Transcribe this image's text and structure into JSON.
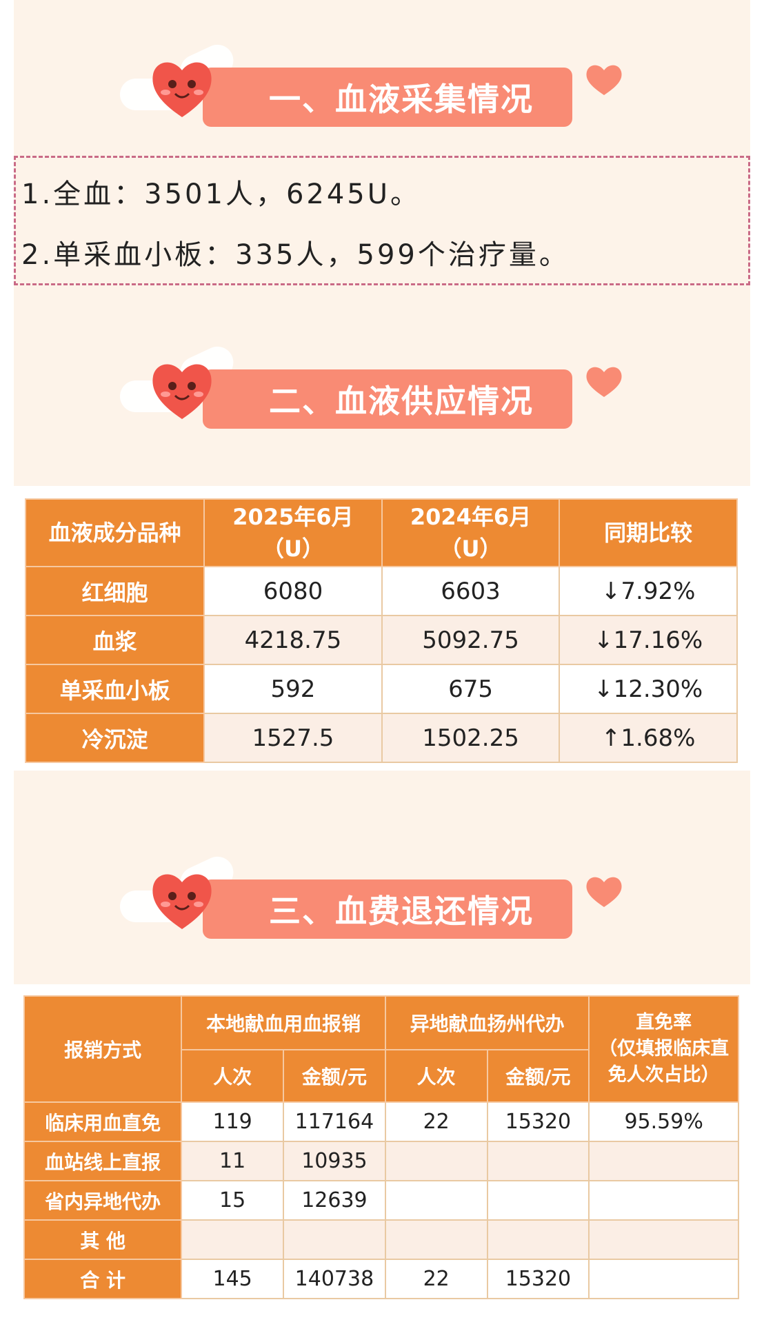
{
  "sections": {
    "collection": {
      "title": "一、血液采集情况",
      "lines": [
        "1.全血：3501人，6245U。",
        "2.单采血小板：335人，599个治疗量。"
      ]
    },
    "supply": {
      "title": "二、血液供应情况",
      "headers": [
        "血液成分品种",
        "2025年6月",
        "（U）",
        "2024年6月",
        "（U）",
        "同期比较"
      ],
      "rows": [
        {
          "name": "红细胞",
          "y2025": "6080",
          "y2024": "6603",
          "change": "↓7.92%"
        },
        {
          "name": "血浆",
          "y2025": "4218.75",
          "y2024": "5092.75",
          "change": "↓17.16%"
        },
        {
          "name": "单采血小板",
          "y2025": "592",
          "y2024": "675",
          "change": "↓12.30%"
        },
        {
          "name": "冷沉淀",
          "y2025": "1527.5",
          "y2024": "1502.25",
          "change": "↑1.68%"
        }
      ]
    },
    "refund": {
      "title": "三、血费退还情况",
      "headers": {
        "method": "报销方式",
        "local": "本地献血用血报销",
        "remote": "异地献血扬州代办",
        "rate": [
          "直免率",
          "（仅填报临床直",
          "免人次占比）"
        ],
        "count": "人次",
        "amount": "金额/元"
      },
      "rows": [
        {
          "name": "临床用血直免",
          "local_count": "119",
          "local_amount": "117164",
          "remote_count": "22",
          "remote_amount": "15320",
          "rate": "95.59%"
        },
        {
          "name": "血站线上直报",
          "local_count": "11",
          "local_amount": "10935",
          "remote_count": "",
          "remote_amount": "",
          "rate": ""
        },
        {
          "name": "省内异地代办",
          "local_count": "15",
          "local_amount": "12639",
          "remote_count": "",
          "remote_amount": "",
          "rate": ""
        },
        {
          "name": "其 他",
          "local_count": "",
          "local_amount": "",
          "remote_count": "",
          "remote_amount": "",
          "rate": ""
        },
        {
          "name": "合 计",
          "local_count": "145",
          "local_amount": "140738",
          "remote_count": "22",
          "remote_amount": "15320",
          "rate": ""
        }
      ]
    }
  },
  "colors": {
    "page_background": "#fdf3e9",
    "title_bar": "#f98b74",
    "table_header": "#ed8a33",
    "row_alt": "#fbeee5",
    "heart": "#f0554a",
    "dashed_border": "#c96a86"
  },
  "icons": [
    "heart-face-icon",
    "wing-icon",
    "heart-icon"
  ]
}
